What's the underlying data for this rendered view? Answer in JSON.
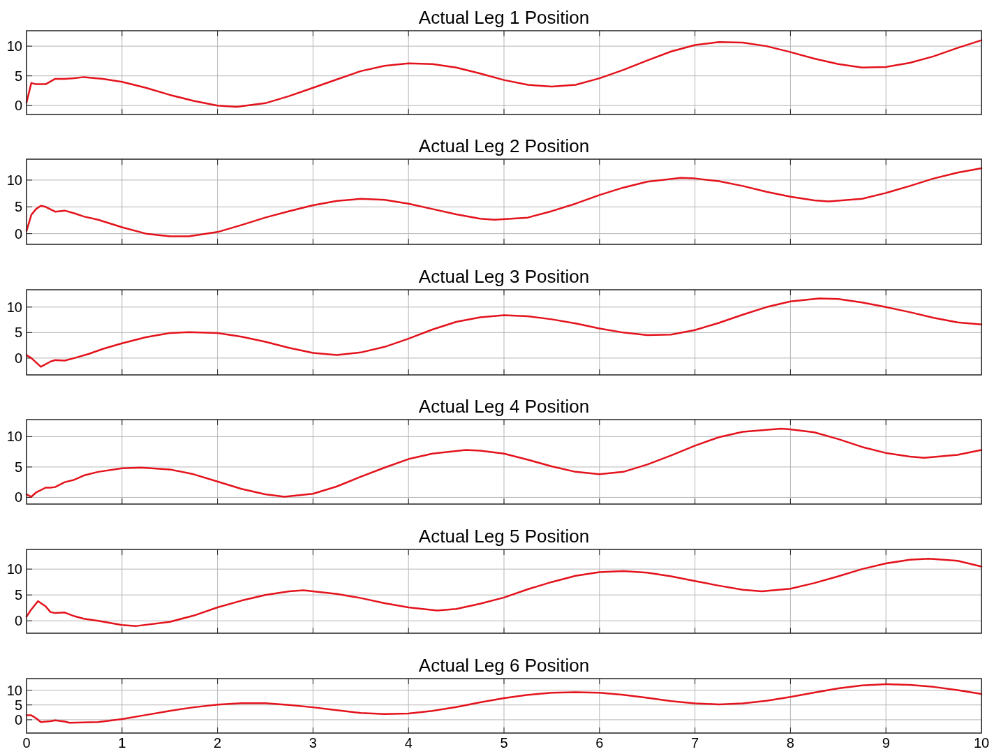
{
  "chart_data": [
    {
      "type": "line",
      "title": "Actual Leg 1 Position",
      "xlim": [
        0,
        10
      ],
      "xticks": [
        0,
        1,
        2,
        3,
        4,
        5,
        6,
        7,
        8,
        9,
        10
      ],
      "ylim": [
        -1.5,
        12.6
      ],
      "yticks": [
        0,
        5,
        10
      ],
      "grid": true,
      "tick_labels": "y",
      "x": [
        0,
        0.05,
        0.1,
        0.2,
        0.3,
        0.4,
        0.5,
        0.6,
        0.8,
        1,
        1.25,
        1.5,
        1.75,
        2,
        2.2,
        2.5,
        2.75,
        3,
        3.25,
        3.5,
        3.75,
        4,
        4.25,
        4.5,
        4.75,
        5,
        5.25,
        5.5,
        5.75,
        6,
        6.25,
        6.5,
        6.75,
        7,
        7.25,
        7.5,
        7.75,
        8,
        8.25,
        8.5,
        8.75,
        9,
        9.25,
        9.5,
        9.75,
        10
      ],
      "series": [
        {
          "color": "#e3121b",
          "values": [
            0.5,
            3.8,
            3.6,
            3.6,
            4.5,
            4.5,
            4.6,
            4.8,
            4.5,
            4.0,
            3.0,
            1.8,
            0.8,
            0.0,
            -0.2,
            0.4,
            1.6,
            3.0,
            4.4,
            5.8,
            6.7,
            7.1,
            7.0,
            6.4,
            5.4,
            4.3,
            3.5,
            3.2,
            3.5,
            4.6,
            6.0,
            7.6,
            9.1,
            10.2,
            10.7,
            10.6,
            10.0,
            9.0,
            7.9,
            7.0,
            6.4,
            6.5,
            7.2,
            8.3,
            9.7,
            11.0
          ]
        }
      ]
    },
    {
      "type": "line",
      "title": "Actual Leg 2 Position",
      "xlim": [
        0,
        10
      ],
      "xticks": [
        0,
        1,
        2,
        3,
        4,
        5,
        6,
        7,
        8,
        9,
        10
      ],
      "ylim": [
        -2,
        13.9
      ],
      "yticks": [
        0,
        5,
        10
      ],
      "grid": true,
      "tick_labels": "y",
      "x": [
        0,
        0.05,
        0.1,
        0.15,
        0.2,
        0.3,
        0.4,
        0.5,
        0.6,
        0.75,
        1,
        1.25,
        1.5,
        1.7,
        2,
        2.25,
        2.5,
        2.75,
        3,
        3.25,
        3.5,
        3.75,
        4,
        4.25,
        4.5,
        4.75,
        4.9,
        5.25,
        5.5,
        5.75,
        6,
        6.25,
        6.5,
        6.85,
        7,
        7.25,
        7.5,
        7.75,
        8,
        8.25,
        8.4,
        8.75,
        9,
        9.25,
        9.5,
        9.75,
        10
      ],
      "series": [
        {
          "color": "#e3121b",
          "values": [
            0.5,
            3.5,
            4.6,
            5.2,
            5.0,
            4.1,
            4.3,
            3.8,
            3.2,
            2.6,
            1.2,
            0.0,
            -0.5,
            -0.5,
            0.3,
            1.6,
            3.0,
            4.2,
            5.3,
            6.1,
            6.5,
            6.3,
            5.6,
            4.6,
            3.6,
            2.8,
            2.6,
            3.0,
            4.2,
            5.6,
            7.2,
            8.6,
            9.7,
            10.4,
            10.3,
            9.8,
            8.9,
            7.8,
            6.9,
            6.2,
            6.0,
            6.5,
            7.6,
            8.9,
            10.3,
            11.4,
            12.2
          ]
        }
      ]
    },
    {
      "type": "line",
      "title": "Actual Leg 3 Position",
      "xlim": [
        0,
        10
      ],
      "xticks": [
        0,
        1,
        2,
        3,
        4,
        5,
        6,
        7,
        8,
        9,
        10
      ],
      "ylim": [
        -3.3,
        13.4
      ],
      "yticks": [
        0,
        5,
        10
      ],
      "grid": true,
      "tick_labels": "y",
      "x": [
        0,
        0.05,
        0.15,
        0.25,
        0.3,
        0.4,
        0.5,
        0.65,
        0.8,
        1,
        1.25,
        1.5,
        1.7,
        2,
        2.25,
        2.5,
        2.75,
        3,
        3.25,
        3.5,
        3.75,
        4,
        4.25,
        4.5,
        4.75,
        5,
        5.25,
        5.5,
        5.75,
        6,
        6.25,
        6.5,
        6.75,
        7,
        7.25,
        7.5,
        7.75,
        8,
        8.3,
        8.5,
        8.75,
        9,
        9.25,
        9.5,
        9.75,
        10
      ],
      "series": [
        {
          "color": "#e3121b",
          "values": [
            0.6,
            0,
            -1.7,
            -0.7,
            -0.4,
            -0.5,
            0,
            0.8,
            1.8,
            2.9,
            4.1,
            4.9,
            5.1,
            4.9,
            4.2,
            3.2,
            2.0,
            1.0,
            0.6,
            1.1,
            2.2,
            3.8,
            5.6,
            7.1,
            8.0,
            8.4,
            8.2,
            7.6,
            6.8,
            5.8,
            5.0,
            4.5,
            4.6,
            5.5,
            6.9,
            8.5,
            10.0,
            11.1,
            11.7,
            11.6,
            10.9,
            10.0,
            9.0,
            7.9,
            7.0,
            6.6
          ]
        }
      ]
    },
    {
      "type": "line",
      "title": "Actual Leg 4 Position",
      "xlim": [
        0,
        10
      ],
      "xticks": [
        0,
        1,
        2,
        3,
        4,
        5,
        6,
        7,
        8,
        9,
        10
      ],
      "ylim": [
        -1.1,
        12.8
      ],
      "yticks": [
        0,
        5,
        10
      ],
      "grid": true,
      "tick_labels": "y",
      "x": [
        0,
        0.05,
        0.1,
        0.2,
        0.25,
        0.3,
        0.4,
        0.5,
        0.6,
        0.75,
        1,
        1.2,
        1.5,
        1.75,
        2,
        2.25,
        2.5,
        2.7,
        3,
        3.25,
        3.5,
        3.75,
        4,
        4.25,
        4.6,
        4.75,
        5,
        5.25,
        5.5,
        5.75,
        6,
        6.25,
        6.5,
        6.75,
        7,
        7.25,
        7.5,
        7.9,
        8,
        8.25,
        8.5,
        8.75,
        9,
        9.25,
        9.4,
        9.75,
        10
      ],
      "series": [
        {
          "color": "#e3121b",
          "values": [
            0.5,
            0.1,
            0.8,
            1.6,
            1.6,
            1.7,
            2.5,
            2.9,
            3.6,
            4.2,
            4.8,
            4.9,
            4.6,
            3.8,
            2.6,
            1.4,
            0.5,
            0.1,
            0.6,
            1.8,
            3.4,
            4.9,
            6.3,
            7.2,
            7.8,
            7.7,
            7.2,
            6.2,
            5.1,
            4.2,
            3.8,
            4.2,
            5.4,
            6.9,
            8.5,
            9.9,
            10.8,
            11.3,
            11.2,
            10.7,
            9.6,
            8.3,
            7.3,
            6.7,
            6.5,
            7.0,
            7.8
          ]
        }
      ]
    },
    {
      "type": "line",
      "title": "Actual Leg 5 Position",
      "xlim": [
        0,
        10
      ],
      "xticks": [
        0,
        1,
        2,
        3,
        4,
        5,
        6,
        7,
        8,
        9,
        10
      ],
      "ylim": [
        -2.4,
        13.8
      ],
      "yticks": [
        0,
        5,
        10
      ],
      "grid": true,
      "tick_labels": "y",
      "x": [
        0,
        0.05,
        0.12,
        0.2,
        0.25,
        0.3,
        0.4,
        0.5,
        0.6,
        0.75,
        1,
        1.15,
        1.5,
        1.75,
        2,
        2.25,
        2.5,
        2.75,
        2.9,
        3.25,
        3.5,
        3.75,
        4,
        4.3,
        4.5,
        4.75,
        5,
        5.25,
        5.5,
        5.75,
        6,
        6.25,
        6.5,
        6.75,
        7,
        7.25,
        7.5,
        7.7,
        8,
        8.25,
        8.5,
        8.75,
        9,
        9.25,
        9.45,
        9.75,
        10
      ],
      "series": [
        {
          "color": "#e3121b",
          "values": [
            0.8,
            2.2,
            3.8,
            2.8,
            1.7,
            1.5,
            1.6,
            0.9,
            0.4,
            0.0,
            -0.8,
            -1.0,
            -0.2,
            1.0,
            2.6,
            3.9,
            5.0,
            5.7,
            5.9,
            5.2,
            4.4,
            3.4,
            2.6,
            2.0,
            2.3,
            3.3,
            4.5,
            6.1,
            7.5,
            8.7,
            9.4,
            9.6,
            9.3,
            8.6,
            7.7,
            6.8,
            6.0,
            5.7,
            6.2,
            7.3,
            8.6,
            10.0,
            11.1,
            11.8,
            12.0,
            11.6,
            10.5
          ]
        }
      ]
    },
    {
      "type": "line",
      "title": "Actual Leg 6 Position",
      "xlim": [
        0,
        10
      ],
      "xticks": [
        0,
        1,
        2,
        3,
        4,
        5,
        6,
        7,
        8,
        9,
        10
      ],
      "ylim": [
        -4.5,
        13.9
      ],
      "yticks": [
        0,
        5,
        10
      ],
      "grid": true,
      "x": [
        0,
        0.05,
        0.1,
        0.15,
        0.25,
        0.3,
        0.4,
        0.45,
        0.6,
        0.75,
        1,
        1.25,
        1.5,
        1.75,
        2,
        2.25,
        2.5,
        2.75,
        3,
        3.25,
        3.5,
        3.75,
        4,
        4.25,
        4.5,
        4.75,
        5,
        5.25,
        5.5,
        5.75,
        6,
        6.25,
        6.5,
        6.75,
        7,
        7.25,
        7.5,
        7.75,
        8,
        8.25,
        8.5,
        8.75,
        9,
        9.25,
        9.5,
        9.75,
        10
      ],
      "series": [
        {
          "color": "#e3121b",
          "values": [
            1.5,
            1.5,
            0.5,
            -0.8,
            -0.5,
            -0.2,
            -0.6,
            -1.0,
            -0.9,
            -0.8,
            0.2,
            1.6,
            3.0,
            4.2,
            5.1,
            5.6,
            5.6,
            5.0,
            4.2,
            3.2,
            2.3,
            1.9,
            2.1,
            3.0,
            4.3,
            5.9,
            7.3,
            8.4,
            9.1,
            9.3,
            9.1,
            8.4,
            7.4,
            6.3,
            5.5,
            5.2,
            5.5,
            6.4,
            7.7,
            9.2,
            10.6,
            11.6,
            12.0,
            11.8,
            11.1,
            10.0,
            8.7
          ]
        }
      ]
    }
  ]
}
